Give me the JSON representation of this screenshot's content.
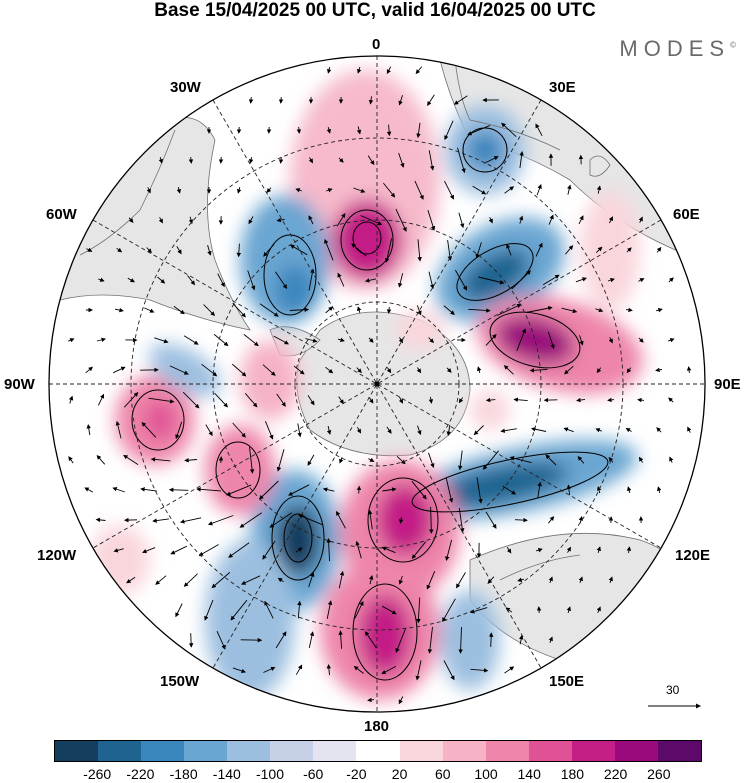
{
  "title": "Base 15/04/2025 00 UTC, valid 16/04/2025 00 UTC",
  "brand": "MODES",
  "brand_mark": "©",
  "longitude_labels": {
    "top": "0",
    "bottom": "180",
    "left": "90W",
    "right": "90E",
    "l30w": "30W",
    "l60w": "60W",
    "l120w": "120W",
    "l150w": "150W",
    "l30e": "30E",
    "l60e": "60E",
    "l120e": "120E",
    "l150e": "150E"
  },
  "vector_scale_label": "30",
  "colorbar": {
    "colors": [
      "#143e5e",
      "#1f6390",
      "#3b86bd",
      "#6aa6d2",
      "#9cbfe0",
      "#c6d1e8",
      "#e4e4f0",
      "#ffffff",
      "#f9d6dc",
      "#f5b3c5",
      "#ee85aa",
      "#e05295",
      "#c31f86",
      "#9a0a7c",
      "#5d096c"
    ],
    "tick_labels": [
      "-260",
      "-220",
      "-180",
      "-140",
      "-100",
      "-60",
      "-20",
      "20",
      "60",
      "100",
      "140",
      "180",
      "220",
      "260"
    ]
  },
  "field_palette": {
    "land": "#e6e6e6",
    "coast": "#707070",
    "grid": "#222222"
  }
}
